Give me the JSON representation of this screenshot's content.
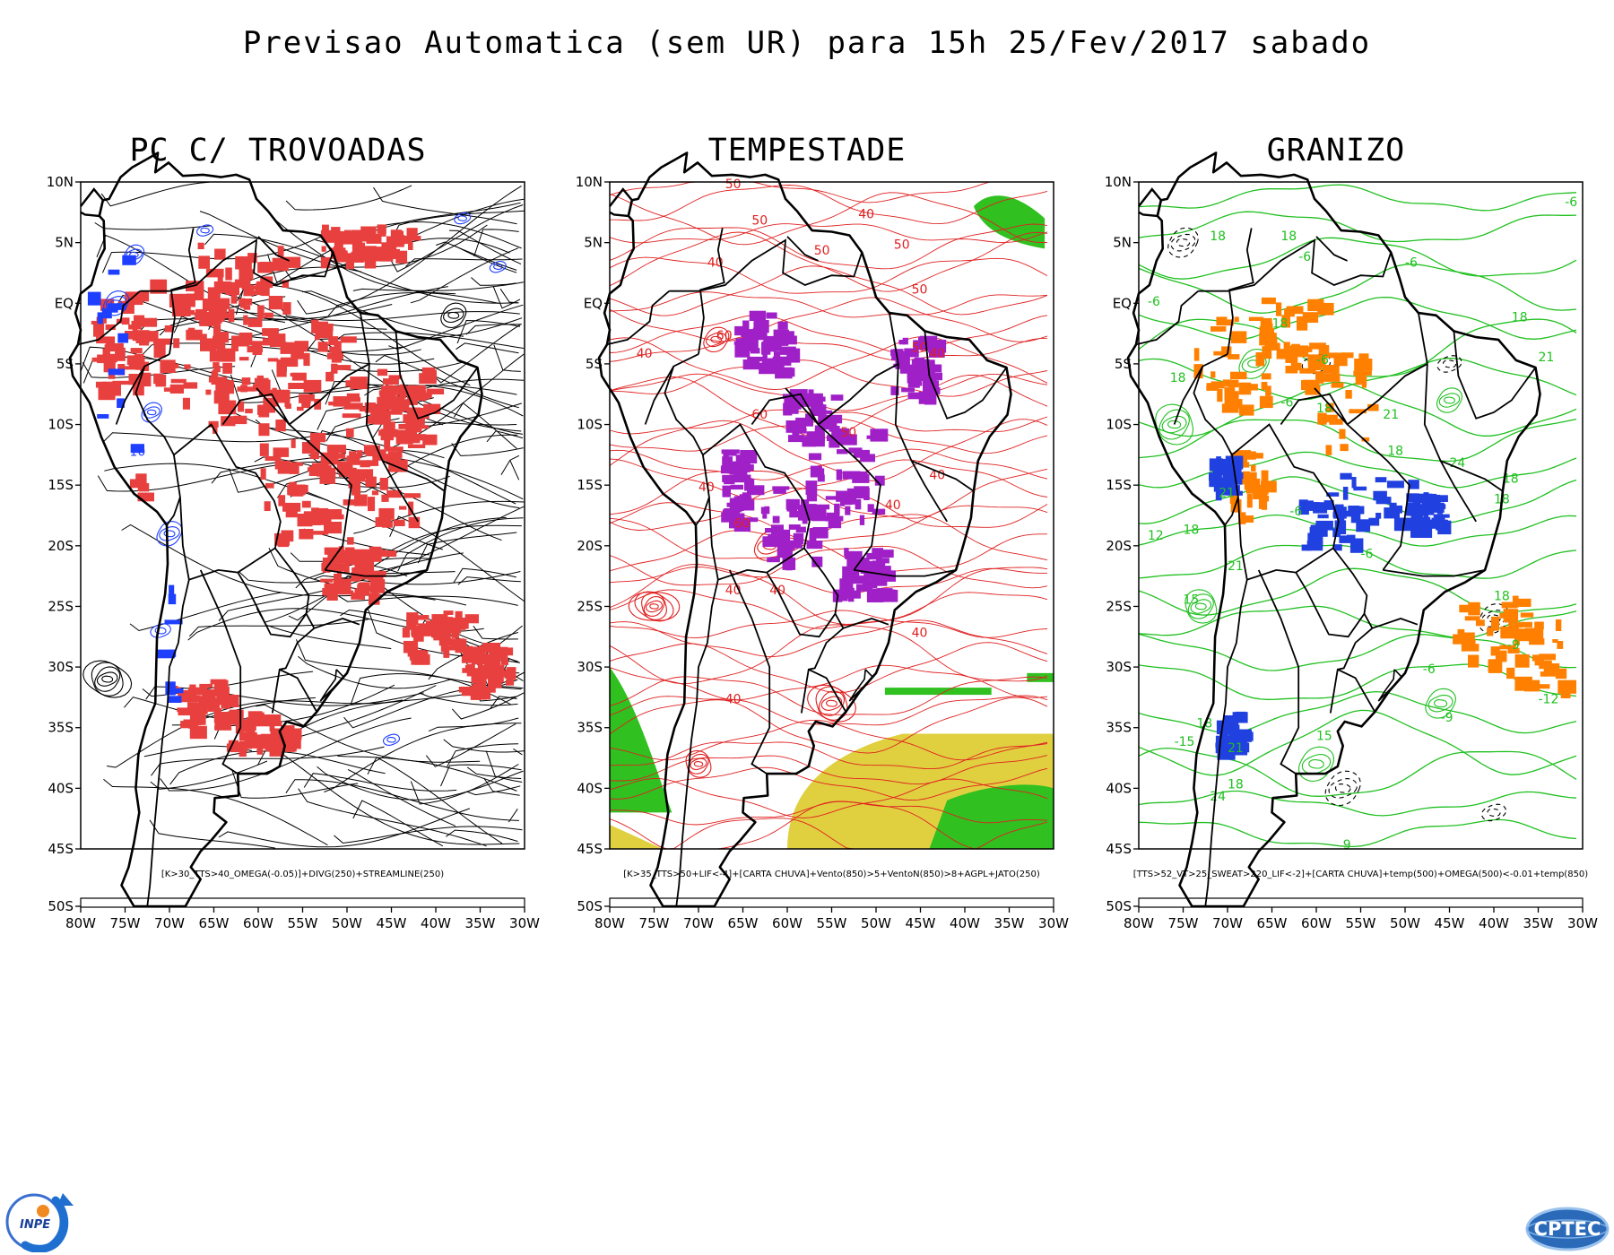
{
  "title": "Previsao Automatica (sem UR) para 15h 25/Fev/2017 sabado",
  "colors": {
    "background": "#ffffff",
    "red_area": "#e8403e",
    "purple_area": "#a020c8",
    "blue_area": "#2040e0",
    "green_area": "#30c020",
    "yellow_area": "#e0d040",
    "streamline_black": "#000000",
    "contour_blue": "#1f3fff",
    "contour_red": "#e02020",
    "contour_green": "#20c020",
    "contour_orange": "#ff8000"
  },
  "panels": [
    {
      "title": "PC C/ TROVOADAS",
      "caption": "[K>30_TTS>40_OMEGA(-0.05)]+DIVG(250)+STREAMLINE(250)",
      "contour_labels": [
        "10"
      ]
    },
    {
      "title": "TEMPESTADE",
      "caption": "[K>35_TTS>50+LIF<-4]+[CARTA CHUVA]+Vento(850)>5+VentoN(850)>8+AGPL+JATO(250)",
      "contour_labels": [
        "50",
        "50",
        "40",
        "50",
        "60",
        "50",
        "40",
        "50",
        "40",
        "40",
        "60",
        "40",
        "60",
        "50",
        "40",
        "40",
        "40",
        "40",
        "40",
        "40",
        "50"
      ]
    },
    {
      "title": "GRANIZO",
      "caption": "[TTS>52_VT>25_SWEAT>220_LIF<-2]+[CARTA CHUVA]+temp(500)+OMEGA(500)<-0.01+temp(850)",
      "contour_labels": [
        "-6",
        "18",
        "18",
        "-6",
        "-6",
        "-6",
        "18",
        "-6",
        "18",
        "21",
        "18",
        "-6",
        "18",
        "21",
        "18",
        "24",
        "18",
        "21",
        "18",
        "-6",
        "18",
        "12",
        "15",
        "21",
        "-6",
        "18",
        "-9",
        "-12",
        "-6",
        "15",
        "-15",
        "18",
        "9",
        "-9",
        "21",
        "18",
        "24"
      ]
    }
  ],
  "lat_ticks": [
    "10N",
    "5N",
    "EQ",
    "5S",
    "10S",
    "15S",
    "20S",
    "25S",
    "30S",
    "35S",
    "40S",
    "45S",
    "50S"
  ],
  "lon_ticks": [
    "80W",
    "75W",
    "70W",
    "65W",
    "60W",
    "55W",
    "50W",
    "45W",
    "40W",
    "35W",
    "30W"
  ],
  "logos": {
    "left": "INPE",
    "right": "CPTEC"
  }
}
